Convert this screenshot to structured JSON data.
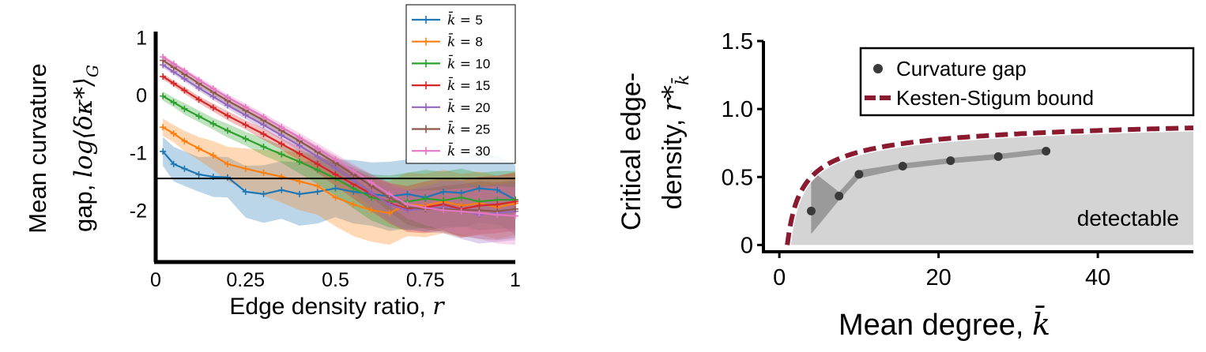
{
  "chart_data": [
    {
      "type": "line",
      "xlabel_text": "Edge density ratio, ",
      "xlabel_var": "r",
      "ylabel_line1": "Mean curvature",
      "ylabel_line2_text": "gap, ",
      "ylabel_line2_math": "log⟨δκ*⟩",
      "ylabel_line2_sub": "G",
      "xlim": [
        0,
        1
      ],
      "ylim": [
        -2.9,
        1.1
      ],
      "xticks": [
        0,
        0.25,
        0.5,
        0.75,
        1
      ],
      "xtick_labels": [
        "0",
        "0.25",
        "0.5",
        "0.75",
        "1"
      ],
      "yticks": [
        1,
        0,
        -1,
        -2
      ],
      "ytick_labels": [
        "1",
        "0",
        "-1",
        "-2"
      ],
      "threshold_y": -1.45,
      "legend_position": "top-right",
      "legend_prefix": "k̄ = ",
      "x": [
        0.02,
        0.05,
        0.08,
        0.12,
        0.16,
        0.2,
        0.25,
        0.3,
        0.35,
        0.4,
        0.45,
        0.5,
        0.55,
        0.6,
        0.65,
        0.7,
        0.75,
        0.8,
        0.85,
        0.9,
        0.95,
        1.0
      ],
      "series": [
        {
          "name": "5",
          "color": "#1f77b4",
          "values": [
            -0.98,
            -1.2,
            -1.28,
            -1.38,
            -1.42,
            -1.43,
            -1.68,
            -1.72,
            -1.65,
            -1.72,
            -1.68,
            -1.62,
            -1.68,
            -1.72,
            -1.76,
            -1.72,
            -1.78,
            -1.68,
            -1.7,
            -1.62,
            -1.65,
            -1.82
          ],
          "band": [
            0.25,
            0.3,
            0.3,
            0.3,
            0.35,
            0.35,
            0.45,
            0.5,
            0.5,
            0.55,
            0.55,
            0.5,
            0.55,
            0.55,
            0.6,
            0.6,
            0.6,
            0.6,
            0.6,
            0.6,
            0.6,
            0.6
          ]
        },
        {
          "name": "8",
          "color": "#ff7f0e",
          "values": [
            -0.56,
            -0.67,
            -0.8,
            -0.93,
            -1.05,
            -1.2,
            -1.28,
            -1.35,
            -1.42,
            -1.5,
            -1.58,
            -1.78,
            -1.9,
            -2.0,
            -2.05,
            -1.9,
            -1.92,
            -1.85,
            -1.92,
            -1.88,
            -1.95,
            -1.88
          ],
          "band": [
            0.15,
            0.15,
            0.18,
            0.2,
            0.25,
            0.3,
            0.35,
            0.4,
            0.45,
            0.5,
            0.5,
            0.5,
            0.55,
            0.55,
            0.55,
            0.55,
            0.55,
            0.55,
            0.55,
            0.55,
            0.55,
            0.55
          ]
        },
        {
          "name": "10",
          "color": "#2ca02c",
          "values": [
            -0.02,
            -0.13,
            -0.24,
            -0.37,
            -0.5,
            -0.62,
            -0.76,
            -0.9,
            -1.03,
            -1.16,
            -1.3,
            -1.45,
            -1.62,
            -1.78,
            -1.85,
            -1.85,
            -1.8,
            -1.83,
            -1.78,
            -1.85,
            -1.82,
            -1.82
          ],
          "band": [
            0.08,
            0.08,
            0.1,
            0.1,
            0.1,
            0.12,
            0.12,
            0.15,
            0.15,
            0.2,
            0.25,
            0.3,
            0.35,
            0.4,
            0.45,
            0.5,
            0.5,
            0.5,
            0.5,
            0.5,
            0.5,
            0.5
          ]
        },
        {
          "name": "15",
          "color": "#d62728",
          "values": [
            0.32,
            0.2,
            0.08,
            -0.08,
            -0.22,
            -0.36,
            -0.52,
            -0.68,
            -0.85,
            -1.02,
            -1.2,
            -1.38,
            -1.55,
            -1.72,
            -1.88,
            -1.98,
            -1.95,
            -1.9,
            -1.98,
            -1.92,
            -1.9,
            -1.85
          ],
          "band": [
            0.05,
            0.05,
            0.06,
            0.06,
            0.07,
            0.08,
            0.08,
            0.1,
            0.1,
            0.12,
            0.15,
            0.2,
            0.25,
            0.3,
            0.35,
            0.4,
            0.45,
            0.45,
            0.5,
            0.5,
            0.5,
            0.5
          ]
        },
        {
          "name": "20",
          "color": "#9467bd",
          "values": [
            0.52,
            0.4,
            0.28,
            0.12,
            -0.03,
            -0.18,
            -0.35,
            -0.52,
            -0.7,
            -0.88,
            -1.07,
            -1.27,
            -1.48,
            -1.7,
            -1.9,
            -2.0,
            -1.98,
            -1.95,
            -2.0,
            -2.08,
            -2.05,
            -2.02
          ],
          "band": [
            0.05,
            0.05,
            0.05,
            0.05,
            0.06,
            0.06,
            0.07,
            0.08,
            0.08,
            0.1,
            0.12,
            0.15,
            0.2,
            0.25,
            0.3,
            0.35,
            0.4,
            0.45,
            0.5,
            0.5,
            0.5,
            0.5
          ]
        },
        {
          "name": "25",
          "color": "#8c564b",
          "values": [
            0.6,
            0.48,
            0.36,
            0.2,
            0.05,
            -0.1,
            -0.27,
            -0.44,
            -0.62,
            -0.8,
            -0.99,
            -1.18,
            -1.38,
            -1.58,
            -1.78,
            -1.95,
            -1.98,
            -1.98,
            -2.0,
            -2.0,
            -2.02,
            -1.98
          ],
          "band": [
            0.04,
            0.04,
            0.05,
            0.05,
            0.05,
            0.06,
            0.06,
            0.07,
            0.08,
            0.09,
            0.1,
            0.12,
            0.15,
            0.2,
            0.25,
            0.3,
            0.35,
            0.4,
            0.45,
            0.5,
            0.5,
            0.5
          ]
        },
        {
          "name": "30",
          "color": "#e377c2",
          "values": [
            0.66,
            0.54,
            0.42,
            0.26,
            0.11,
            -0.04,
            -0.21,
            -0.38,
            -0.56,
            -0.74,
            -0.93,
            -1.12,
            -1.32,
            -1.52,
            -1.72,
            -1.9,
            -1.96,
            -2.0,
            -2.02,
            -2.05,
            -2.08,
            -2.1
          ],
          "band": [
            0.04,
            0.04,
            0.04,
            0.05,
            0.05,
            0.05,
            0.06,
            0.06,
            0.07,
            0.08,
            0.09,
            0.1,
            0.12,
            0.15,
            0.2,
            0.25,
            0.3,
            0.35,
            0.4,
            0.45,
            0.5,
            0.5
          ]
        }
      ]
    },
    {
      "type": "scatter",
      "xlabel_text": "Mean degree, ",
      "xlabel_var": "k̄",
      "ylabel_line1": "Critical edge-",
      "ylabel_line2_text": "density, ",
      "ylabel_line2_math": "r*",
      "ylabel_line2_sub": "k̄",
      "xlim": [
        -2,
        52
      ],
      "ylim": [
        -0.05,
        1.5
      ],
      "xticks": [
        0,
        20,
        40
      ],
      "xtick_labels": [
        "0",
        "20",
        "40"
      ],
      "yticks": [
        0,
        0.5,
        1.0,
        1.5
      ],
      "ytick_labels": [
        "0",
        "0.5",
        "1.0",
        "1.5"
      ],
      "legend_position": "top-right",
      "annotation": "detectable",
      "points": {
        "name": "Curvature gap",
        "color": "#3a3a3a",
        "x": [
          4,
          7.5,
          10,
          15.5,
          21.5,
          27.5,
          33.5
        ],
        "y": [
          0.25,
          0.36,
          0.52,
          0.58,
          0.62,
          0.65,
          0.69
        ],
        "lower": [
          0.08,
          0.33,
          0.49,
          0.56,
          0.6,
          0.63,
          0.67
        ],
        "upper": [
          0.55,
          0.39,
          0.55,
          0.6,
          0.64,
          0.67,
          0.71
        ]
      },
      "bound": {
        "name": "Kesten-Stigum bound",
        "color": "#8b1a30",
        "formula": "(1 - 1/sqrt(k))"
      }
    }
  ]
}
